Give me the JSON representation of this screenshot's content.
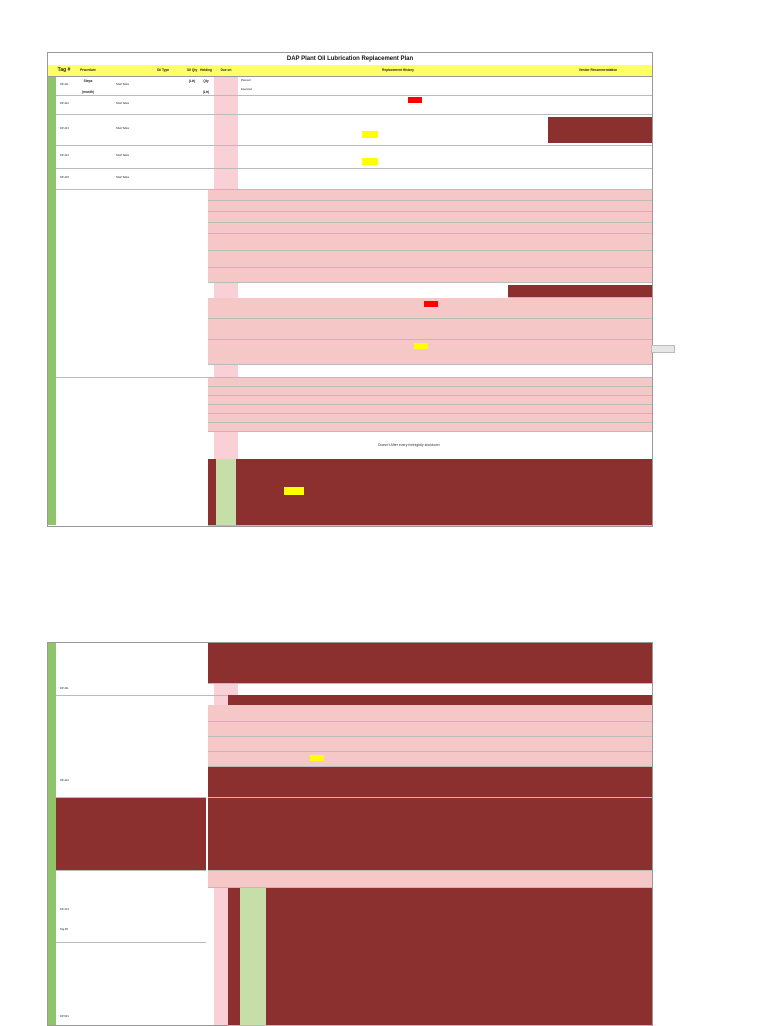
{
  "page1": {
    "title": "DAP Plant Oil Lubrication Replacement Plan",
    "headers": {
      "tag": "Tag #",
      "procedure": "Procedure Steps (month)",
      "oil_type": "Oil Type",
      "oil_qty": "Oil Qty (Ltr)",
      "hold_qty": "Holding Qty (Ltr)",
      "due_on": "Due on",
      "replacement_history": "Replacement History",
      "vendor": "Vendor Recommendation"
    },
    "rows": [
      {
        "tag": "DP-411",
        "oil": "Shell Tellus"
      },
      {
        "tag": "DP-412",
        "oil": "Shell Tellus"
      },
      {
        "tag": "DP-413",
        "oil": "Shell Tellus"
      },
      {
        "tag": "DP-414",
        "oil": "Shell Tellus"
      },
      {
        "tag": "DP-415",
        "oil": "Shell Tellus"
      }
    ],
    "planned": "Planned",
    "executed": "Executed",
    "note": "Doesn't After every fortnightly shutdown"
  },
  "page2": {
    "rows": [
      {
        "tag": "DP-411"
      },
      {
        "tag": "DP-412"
      },
      {
        "tag": "DP-413"
      }
    ],
    "footer_tag": "DP-521",
    "tag_label": "Tag ##"
  },
  "colors": {
    "header": "#ffff66",
    "dark": "#8b2f2f",
    "pink": "#f9d0d6",
    "green": "#c6dfa8",
    "highlight": "#ffff00",
    "alert": "#ff0000"
  }
}
